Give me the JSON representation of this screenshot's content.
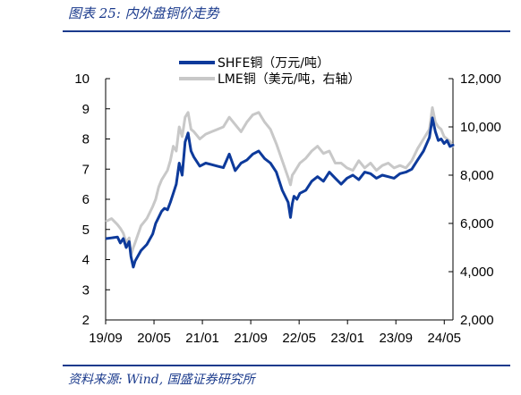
{
  "figure": {
    "title": "图表 25:  内外盘铜价走势",
    "source": "资料来源:  Wind, 国盛证券研究所"
  },
  "colors": {
    "shfe": "#0d3a9b",
    "lme": "#c8c8c8",
    "rule": "#1a3a8c"
  },
  "chart_data": {
    "type": "line",
    "title": "",
    "xlabel": "",
    "ylabel": "",
    "y2label": "",
    "ylim": [
      2,
      10
    ],
    "y2lim": [
      2000,
      12000
    ],
    "yticks": [
      "10",
      "9",
      "8",
      "7",
      "6",
      "5",
      "4",
      "3",
      "2"
    ],
    "y2ticks": [
      "12,000",
      "10,000",
      "8,000",
      "6,000",
      "4,000",
      "2,000"
    ],
    "xticks": [
      "19/09",
      "20/05",
      "21/01",
      "21/09",
      "22/05",
      "23/01",
      "23/09",
      "24/05"
    ],
    "grid": false,
    "legend": "top-center",
    "x_unit": "months since 2019-09",
    "series": [
      {
        "name": "SHFE铜（万元/吨）",
        "axis": "left",
        "x": [
          0.2,
          1,
          2,
          2.5,
          3,
          3.5,
          4,
          4.3,
          4.7,
          5,
          6,
          7,
          8,
          8.5,
          9,
          9.5,
          10,
          10.5,
          11,
          11.5,
          12,
          12.5,
          13,
          13.5,
          14,
          14.3,
          14.5,
          15,
          16,
          17,
          18,
          19,
          20,
          21,
          22,
          23,
          24,
          25,
          26,
          27,
          28,
          29,
          30,
          31,
          31.4,
          31.7,
          32,
          32.5,
          33,
          34,
          35,
          36,
          37,
          38,
          39,
          40,
          41,
          42,
          43,
          44,
          45,
          46,
          47,
          48,
          49,
          50,
          51,
          52,
          53,
          54,
          55,
          55.5,
          56,
          56.5,
          57,
          57.5,
          58,
          58.5,
          59
        ],
        "values": [
          4.7,
          4.72,
          4.75,
          4.55,
          4.7,
          4.4,
          4.6,
          4.1,
          3.75,
          3.95,
          4.3,
          4.5,
          4.85,
          5.2,
          5.4,
          5.6,
          5.7,
          5.65,
          5.9,
          6.2,
          6.5,
          7.2,
          6.8,
          7.9,
          8.2,
          7.85,
          7.6,
          7.4,
          7.1,
          7.2,
          7.15,
          7.1,
          7.05,
          7.5,
          6.95,
          7.2,
          7.3,
          7.5,
          7.6,
          7.35,
          7.2,
          6.9,
          6.3,
          5.9,
          5.4,
          5.85,
          6.1,
          6.0,
          6.2,
          6.3,
          6.6,
          6.75,
          6.6,
          6.9,
          6.7,
          6.5,
          6.7,
          6.8,
          6.65,
          6.9,
          6.85,
          6.7,
          6.8,
          6.75,
          6.7,
          6.85,
          6.9,
          7.0,
          7.3,
          7.6,
          8.05,
          8.7,
          8.25,
          7.95,
          8.0,
          7.85,
          7.95,
          7.75,
          7.8
        ]
      },
      {
        "name": "LME铜（美元/吨，右轴）",
        "axis": "right",
        "x": [
          0.2,
          1,
          2,
          2.5,
          3,
          3.5,
          4,
          4.3,
          4.7,
          5,
          6,
          7,
          8,
          8.5,
          9,
          9.5,
          10,
          10.5,
          11,
          11.5,
          12,
          12.5,
          13,
          13.5,
          14,
          14.3,
          14.5,
          15,
          16,
          17,
          18,
          19,
          20,
          21,
          22,
          23,
          24,
          25,
          26,
          27,
          28,
          29,
          30,
          31,
          31.4,
          31.7,
          32,
          32.5,
          33,
          34,
          35,
          36,
          37,
          38,
          39,
          40,
          41,
          42,
          43,
          44,
          45,
          46,
          47,
          48,
          49,
          50,
          51,
          52,
          53,
          54,
          55,
          55.5,
          56,
          56.5,
          57,
          57.5,
          58,
          58.5,
          59
        ],
        "values": [
          6100,
          6200,
          5950,
          5800,
          5600,
          5200,
          5400,
          4700,
          5000,
          5200,
          5900,
          6200,
          6700,
          7000,
          7500,
          7800,
          8000,
          8200,
          8600,
          9200,
          9000,
          10000,
          9600,
          10400,
          10600,
          10200,
          9900,
          9800,
          9500,
          9700,
          9800,
          9900,
          10000,
          10400,
          10100,
          9800,
          10200,
          10500,
          10600,
          10200,
          9900,
          9300,
          8600,
          7900,
          7600,
          8000,
          8100,
          8300,
          8500,
          8700,
          9000,
          9200,
          8900,
          9000,
          8500,
          8500,
          8300,
          8200,
          8600,
          8300,
          8500,
          8200,
          8400,
          8500,
          8300,
          8400,
          8300,
          8600,
          9100,
          9500,
          9900,
          10800,
          10200,
          10000,
          9900,
          9600,
          9500,
          9400,
          9200
        ]
      }
    ]
  }
}
